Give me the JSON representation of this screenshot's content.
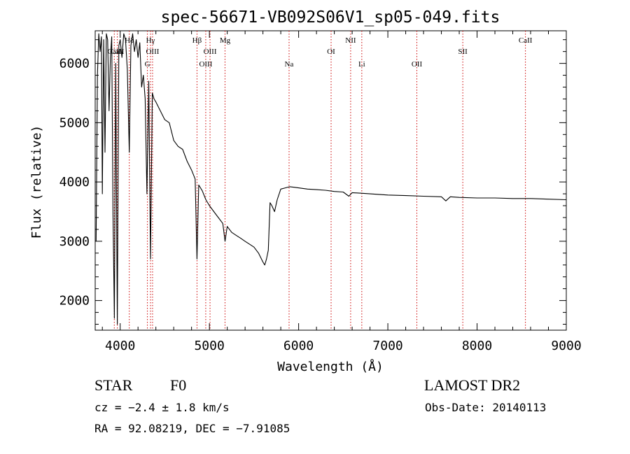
{
  "chart_data": {
    "type": "line",
    "title": "spec-56671-VB092S06V1_sp05-049.fits",
    "xlabel": "Wavelength (Å)",
    "ylabel": "Flux (relative)",
    "xlim": [
      3720,
      9000
    ],
    "ylim": [
      1500,
      6550
    ],
    "xticks": [
      4000,
      5000,
      6000,
      7000,
      8000,
      9000
    ],
    "yticks": [
      2000,
      3000,
      4000,
      5000,
      6000
    ],
    "grid": false,
    "line_color": "#000000",
    "marker_color": "#cc0000",
    "series": [
      {
        "x": [
          3730,
          3745,
          3760,
          3775,
          3790,
          3800,
          3815,
          3830,
          3845,
          3860,
          3875,
          3890,
          3905,
          3920,
          3935,
          3950,
          3968,
          3985,
          4000,
          4020,
          4040,
          4060,
          4080,
          4102,
          4120,
          4140,
          4160,
          4180,
          4200,
          4220,
          4240,
          4260,
          4280,
          4300,
          4320,
          4340,
          4360,
          4380,
          4400,
          4450,
          4500,
          4550,
          4600,
          4650,
          4700,
          4750,
          4800,
          4840,
          4861,
          4880,
          4920,
          4960,
          5000,
          5050,
          5100,
          5150,
          5175,
          5200,
          5250,
          5300,
          5350,
          5400,
          5450,
          5500,
          5550,
          5600,
          5620,
          5640,
          5660,
          5680,
          5700,
          5730,
          5760,
          5800,
          5850,
          5900,
          5950,
          6000,
          6100,
          6200,
          6300,
          6400,
          6500,
          6563,
          6600,
          6700,
          6800,
          6900,
          7000,
          7200,
          7400,
          7600,
          7650,
          7700,
          7800,
          8000,
          8200,
          8400,
          8600,
          8800,
          9000
        ],
        "y": [
          3000,
          5800,
          6500,
          6200,
          6450,
          3800,
          6400,
          4500,
          6500,
          6400,
          5200,
          6100,
          6450,
          3400,
          1700,
          6000,
          1600,
          6300,
          6400,
          6100,
          6500,
          6400,
          5900,
          4500,
          6300,
          6500,
          6200,
          6400,
          6100,
          6350,
          5600,
          5800,
          5400,
          3800,
          5700,
          2700,
          5500,
          5400,
          5350,
          5200,
          5050,
          5000,
          4700,
          4600,
          4550,
          4350,
          4200,
          4050,
          2700,
          3950,
          3850,
          3700,
          3600,
          3500,
          3400,
          3300,
          3000,
          3250,
          3150,
          3100,
          3050,
          3000,
          2950,
          2900,
          2800,
          2650,
          2600,
          2700,
          2850,
          3650,
          3600,
          3500,
          3700,
          3880,
          3900,
          3920,
          3910,
          3900,
          3880,
          3870,
          3860,
          3840,
          3830,
          3760,
          3820,
          3810,
          3800,
          3790,
          3780,
          3770,
          3760,
          3750,
          3680,
          3750,
          3740,
          3730,
          3730,
          3720,
          3720,
          3710,
          3700
        ]
      }
    ],
    "line_markers": [
      {
        "label": "Hδ",
        "x": 4102,
        "row": 1
      },
      {
        "label": "CaII",
        "x": 3934,
        "row": 2
      },
      {
        "label": "CaII",
        "x": 3968,
        "row": 2
      },
      {
        "label": "G",
        "x": 4305,
        "row": 3
      },
      {
        "label": "Hγ",
        "x": 4340,
        "row": 1
      },
      {
        "label": "OIII",
        "x": 4363,
        "row": 2
      },
      {
        "label": "Hβ",
        "x": 4861,
        "row": 1
      },
      {
        "label": "OIII",
        "x": 4959,
        "row": 3
      },
      {
        "label": "OIII",
        "x": 5007,
        "row": 2
      },
      {
        "label": "Mg",
        "x": 5175,
        "row": 1
      },
      {
        "label": "Na",
        "x": 5893,
        "row": 3
      },
      {
        "label": "OI",
        "x": 6364,
        "row": 2
      },
      {
        "label": "NII",
        "x": 6583,
        "row": 1
      },
      {
        "label": "Li",
        "x": 6708,
        "row": 3
      },
      {
        "label": "OII",
        "x": 7325,
        "row": 3
      },
      {
        "label": "SII",
        "x": 7840,
        "row": 2
      },
      {
        "label": "CaII",
        "x": 8542,
        "row": 1
      }
    ]
  },
  "footer": {
    "object_class": "STAR",
    "subclass": "F0",
    "survey": "LAMOST DR2",
    "cz": "cz = −2.4 ± 1.8 km/s",
    "obs_date": "Obs-Date: 20140113",
    "coords": "RA =  92.08219, DEC =  −7.91085"
  }
}
